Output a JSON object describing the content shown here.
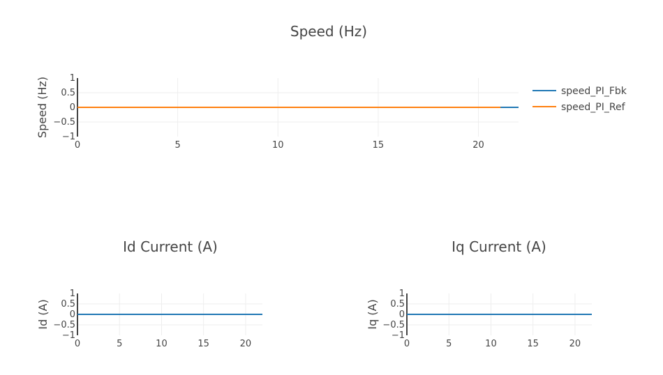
{
  "chart_data": [
    {
      "type": "line",
      "title": "Speed (Hz)",
      "xlabel": "",
      "ylabel": "Speed (Hz)",
      "xlim": [
        0,
        22
      ],
      "ylim": [
        -1,
        1
      ],
      "x_ticks": [
        0,
        5,
        10,
        15,
        20
      ],
      "y_ticks": [
        1,
        0.5,
        0,
        -0.5,
        -1
      ],
      "y_tick_labels": [
        "1",
        "0.5",
        "0",
        "−0.5",
        "−1"
      ],
      "grid": true,
      "legend": "right",
      "series": [
        {
          "name": "speed_PI_Fbk",
          "color": "#1f77b4",
          "x": [
            0,
            22
          ],
          "y": [
            0,
            0
          ]
        },
        {
          "name": "speed_PI_Ref",
          "color": "#ff7f0e",
          "x": [
            0,
            21.1
          ],
          "y": [
            0,
            0
          ]
        }
      ]
    },
    {
      "type": "line",
      "title": "Id Current (A)",
      "xlabel": "",
      "ylabel": "Id (A)",
      "xlim": [
        0,
        22
      ],
      "ylim": [
        -1,
        1
      ],
      "x_ticks": [
        0,
        5,
        10,
        15,
        20
      ],
      "y_ticks": [
        1,
        0.5,
        0,
        -0.5,
        -1
      ],
      "y_tick_labels": [
        "1",
        "0.5",
        "0",
        "−0.5",
        "−1"
      ],
      "grid": true,
      "series": [
        {
          "color": "#1f77b4",
          "x": [
            0,
            22
          ],
          "y": [
            0,
            0
          ]
        }
      ]
    },
    {
      "type": "line",
      "title": "Iq Current (A)",
      "xlabel": "",
      "ylabel": "Iq (A)",
      "xlim": [
        0,
        22
      ],
      "ylim": [
        -1,
        1
      ],
      "x_ticks": [
        0,
        5,
        10,
        15,
        20
      ],
      "y_ticks": [
        1,
        0.5,
        0,
        -0.5,
        -1
      ],
      "y_tick_labels": [
        "1",
        "0.5",
        "0",
        "−0.5",
        "−1"
      ],
      "grid": true,
      "series": [
        {
          "color": "#1f77b4",
          "x": [
            0,
            22
          ],
          "y": [
            0,
            0
          ]
        }
      ]
    }
  ]
}
